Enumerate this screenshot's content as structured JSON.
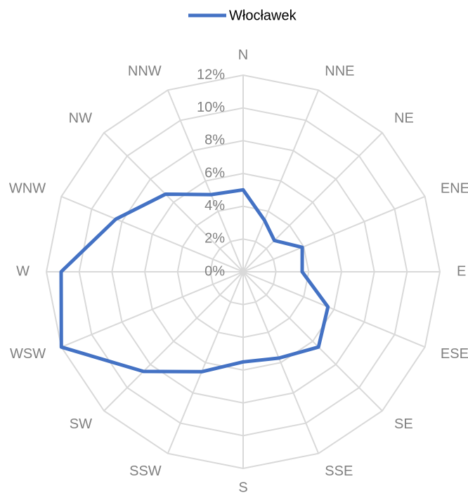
{
  "chart_data": {
    "type": "radar",
    "categories": [
      "N",
      "NNE",
      "NE",
      "ENE",
      "E",
      "ESE",
      "SE",
      "SSE",
      "S",
      "SSW",
      "SW",
      "WSW",
      "W",
      "WNW",
      "NW",
      "NNW"
    ],
    "series": [
      {
        "name": "Włocławek",
        "color": "#4472c4",
        "values": [
          5.0,
          3.4,
          2.7,
          3.9,
          3.6,
          5.6,
          6.5,
          5.7,
          5.5,
          6.6,
          8.6,
          12.0,
          11.1,
          8.4,
          6.7,
          5.1
        ]
      }
    ],
    "ylim": [
      0,
      12
    ],
    "yticks": [
      {
        "value": 0,
        "label": "0%"
      },
      {
        "value": 2,
        "label": "2%"
      },
      {
        "value": 4,
        "label": "4%"
      },
      {
        "value": 6,
        "label": "6%"
      },
      {
        "value": 8,
        "label": "8%"
      },
      {
        "value": 10,
        "label": "10%"
      },
      {
        "value": 12,
        "label": "12%"
      }
    ],
    "grid": true,
    "legend": "top"
  }
}
